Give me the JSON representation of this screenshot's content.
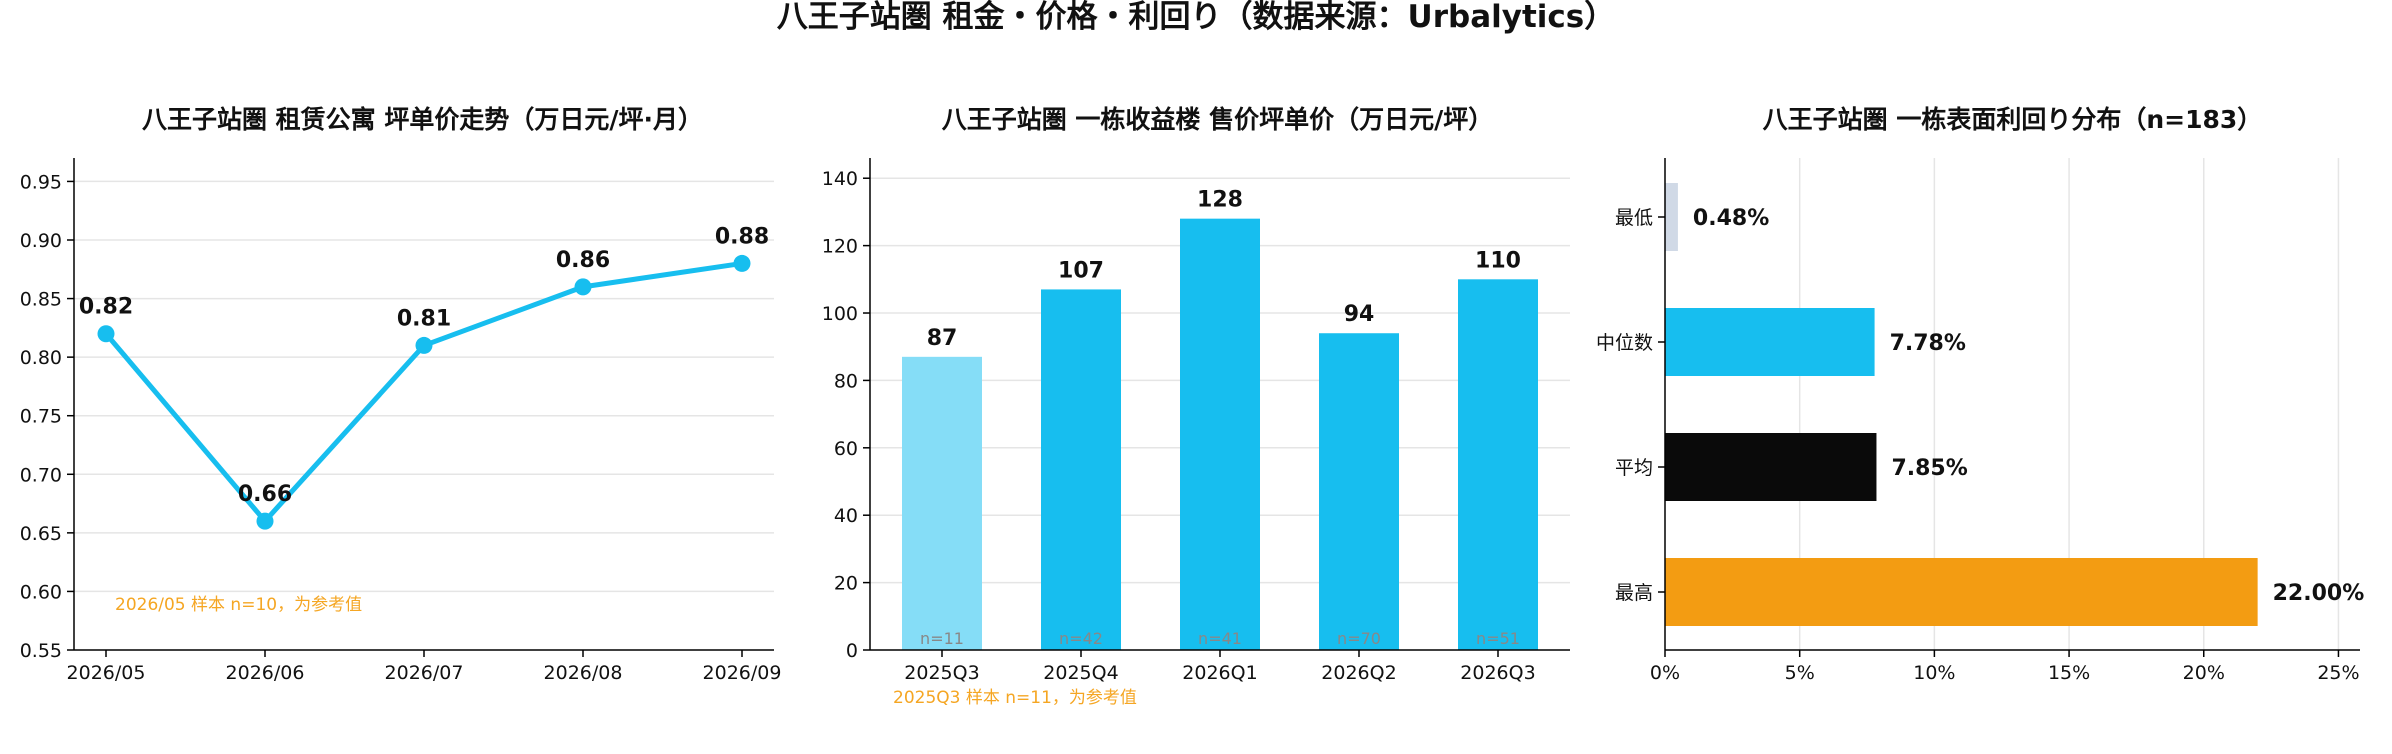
{
  "suptitle": "八王子站圏 租金・价格・利回り（数据来源：Urbalytics）",
  "chart_data": [
    {
      "type": "line",
      "title": "八王子站圏 租赁公寓 坪单价走势（万日元/坪·月）",
      "x": [
        "2026/05",
        "2026/06",
        "2026/07",
        "2026/08",
        "2026/09"
      ],
      "values": [
        0.82,
        0.66,
        0.81,
        0.86,
        0.88
      ],
      "data_labels": [
        "0.82",
        "0.66",
        "0.81",
        "0.86",
        "0.88"
      ],
      "ylim": [
        0.55,
        0.97
      ],
      "yticks": [
        "0.55",
        "0.60",
        "0.65",
        "0.70",
        "0.75",
        "0.80",
        "0.85",
        "0.90",
        "0.95"
      ],
      "grid": "horizontal",
      "annotation": "2026/05 样本 n=10，为参考值",
      "colors": {
        "line": "#17BEEF",
        "annotation": "#F5A623",
        "grid": "#E5E5E5"
      }
    },
    {
      "type": "bar",
      "title": "八王子站圏 一栋收益楼 售价坪单价（万日元/坪）",
      "categories": [
        "2025Q3",
        "2025Q4",
        "2026Q1",
        "2026Q2",
        "2026Q3"
      ],
      "values": [
        87,
        107,
        128,
        94,
        110
      ],
      "data_labels": [
        "87",
        "107",
        "128",
        "94",
        "110"
      ],
      "sample_labels": [
        "n=11",
        "n=42",
        "n=41",
        "n=70",
        "n=51"
      ],
      "ylim": [
        0,
        146
      ],
      "yticks": [
        "0",
        "20",
        "40",
        "60",
        "80",
        "100",
        "120",
        "140"
      ],
      "grid": "horizontal",
      "annotation": "2025Q3 样本 n=11，为参考值",
      "colors": {
        "bars": [
          "#85DDF7",
          "#17BEEF",
          "#17BEEF",
          "#17BEEF",
          "#17BEEF"
        ],
        "annotation": "#F5A623",
        "sample_text": "#888888"
      }
    },
    {
      "type": "bar",
      "orientation": "horizontal",
      "title": "八王子站圏 一栋表面利回り分布（n=183）",
      "categories": [
        "最低",
        "中位数",
        "平均",
        "最高"
      ],
      "values": [
        0.48,
        7.78,
        7.85,
        22.0
      ],
      "data_labels": [
        "0.48%",
        "7.78%",
        "7.85%",
        "22.00%"
      ],
      "xlim": [
        0,
        25.8
      ],
      "xticks": [
        "0%",
        "5%",
        "10%",
        "15%",
        "20%",
        "25%"
      ],
      "grid": "vertical",
      "colors": {
        "bars": [
          "#D0D9E6",
          "#17BEEF",
          "#0A0A0A",
          "#F39C12"
        ]
      }
    }
  ]
}
